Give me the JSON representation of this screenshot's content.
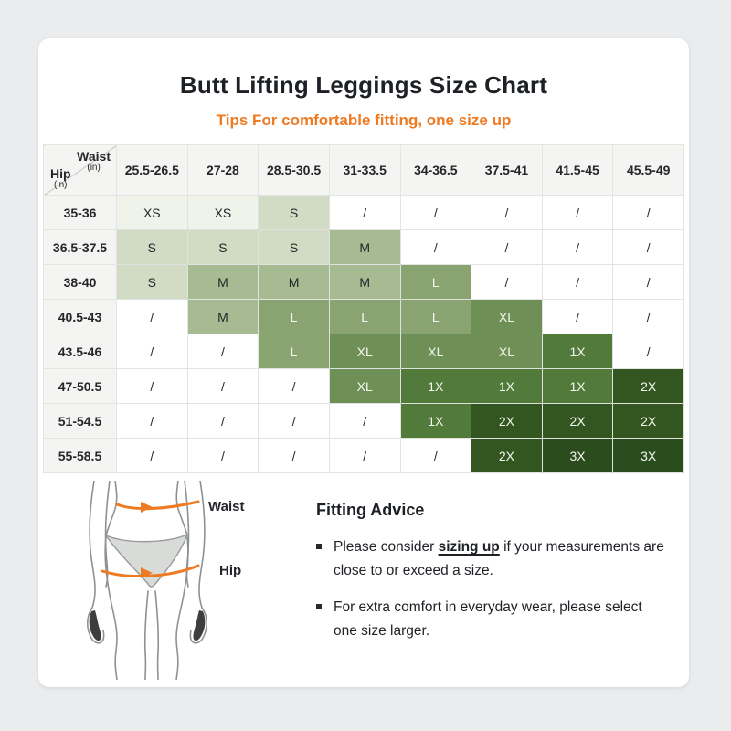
{
  "header": {
    "title": "Butt Lifting Leggings Size Chart",
    "subtitle": "Tips For comfortable fitting, one size up",
    "accent_color": "#ee7a22",
    "title_color": "#1d2025"
  },
  "table": {
    "corner": {
      "top_label": "Waist",
      "top_unit": "(in)",
      "side_label": "Hip",
      "side_unit": "(in)"
    },
    "waist_headers": [
      "25.5-26.5",
      "27-28",
      "28.5-30.5",
      "31-33.5",
      "34-36.5",
      "37.5-41",
      "41.5-45",
      "45.5-49"
    ],
    "rows": [
      {
        "hip": "35-36",
        "cells": [
          "XS",
          "XS",
          "S",
          "/",
          "/",
          "/",
          "/",
          "/"
        ]
      },
      {
        "hip": "36.5-37.5",
        "cells": [
          "S",
          "S",
          "S",
          "M",
          "/",
          "/",
          "/",
          "/"
        ]
      },
      {
        "hip": "38-40",
        "cells": [
          "S",
          "M",
          "M",
          "M",
          "L",
          "/",
          "/",
          "/"
        ]
      },
      {
        "hip": "40.5-43",
        "cells": [
          "/",
          "M",
          "L",
          "L",
          "L",
          "XL",
          "/",
          "/"
        ]
      },
      {
        "hip": "43.5-46",
        "cells": [
          "/",
          "/",
          "L",
          "XL",
          "XL",
          "XL",
          "1X",
          "/"
        ]
      },
      {
        "hip": "47-50.5",
        "cells": [
          "/",
          "/",
          "/",
          "XL",
          "1X",
          "1X",
          "1X",
          "2X"
        ]
      },
      {
        "hip": "51-54.5",
        "cells": [
          "/",
          "/",
          "/",
          "/",
          "1X",
          "2X",
          "2X",
          "2X"
        ]
      },
      {
        "hip": "55-58.5",
        "cells": [
          "/",
          "/",
          "/",
          "/",
          "/",
          "2X",
          "3X",
          "3X"
        ]
      }
    ],
    "palette": {
      "XS": {
        "bg": "#eff3ea",
        "fg": "#24262a"
      },
      "S": {
        "bg": "#d2dcc5",
        "fg": "#24262a"
      },
      "M": {
        "bg": "#a6bb91",
        "fg": "#24262a"
      },
      "L": {
        "bg": "#8aa471",
        "fg": "#f5f8f1"
      },
      "XL": {
        "bg": "#6e8f55",
        "fg": "#f5f8f1"
      },
      "1X": {
        "bg": "#527a3a",
        "fg": "#f5f8f1"
      },
      "2X": {
        "bg": "#33551f",
        "fg": "#f5f8f1"
      },
      "3X": {
        "bg": "#2b4d1d",
        "fg": "#f5f8f1"
      },
      "/": {
        "bg": "#ffffff",
        "fg": "#2a2d31"
      }
    }
  },
  "figure": {
    "waist_label": "Waist",
    "hip_label": "Hip",
    "arrow_color": "#ee7a22",
    "outline_color": "#8e9093"
  },
  "advice": {
    "title": "Fitting Advice",
    "bullet1": {
      "prefix": "Please consider ",
      "emphasis": "sizing up",
      "suffix": " if your measurements are close to or exceed a size."
    },
    "bullet2": "For extra comfort in everyday wear, please select one size larger."
  },
  "icons": {
    "bullet_marker": "small-black-square",
    "waist_arrow": "right-arrow",
    "hip_arrow": "right-arrow"
  }
}
